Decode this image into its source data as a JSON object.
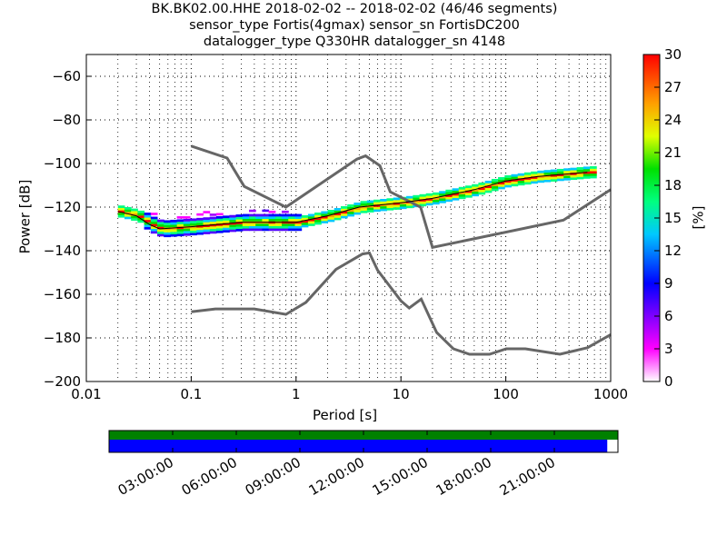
{
  "title_lines": [
    "BK.BK02.00.HHE   2018-02-02 -- 2018-02-02  (46/46 segments)",
    "sensor_type Fortis(4gmax) sensor_sn FortisDC200",
    "datalogger_type Q330HR datalogger_sn 4148"
  ],
  "chart_data": {
    "type": "heatmap",
    "xlabel": "Period [s]",
    "ylabel": "Power [dB]",
    "xscale": "log",
    "xlim": [
      0.01,
      1000
    ],
    "ylim": [
      -200,
      -50
    ],
    "xticks": [
      0.01,
      0.1,
      1,
      10,
      100,
      1000
    ],
    "xtick_labels": [
      "0.01",
      "0.1",
      "1",
      "10",
      "100",
      "1000"
    ],
    "yticks": [
      -200,
      -180,
      -160,
      -140,
      -120,
      -100,
      -80,
      -60
    ],
    "ytick_labels": [
      "−200",
      "−180",
      "−160",
      "−140",
      "−120",
      "−100",
      "−80",
      "−60"
    ],
    "grid": true,
    "mode_curve": [
      [
        0.02,
        -122
      ],
      [
        0.03,
        -124
      ],
      [
        0.04,
        -128
      ],
      [
        0.05,
        -130
      ],
      [
        0.1,
        -129
      ],
      [
        0.3,
        -127
      ],
      [
        1,
        -127
      ],
      [
        2,
        -124
      ],
      [
        4,
        -120
      ],
      [
        10,
        -118
      ],
      [
        20,
        -116
      ],
      [
        50,
        -112
      ],
      [
        100,
        -108
      ],
      [
        200,
        -106
      ],
      [
        600,
        -104
      ]
    ],
    "high_noise_model": [
      [
        0.1,
        -92
      ],
      [
        0.22,
        -97.5
      ],
      [
        0.32,
        -110.5
      ],
      [
        0.8,
        -120
      ],
      [
        3.8,
        -98
      ],
      [
        4.6,
        -96.5
      ],
      [
        6.3,
        -101
      ],
      [
        7.9,
        -113
      ],
      [
        15.4,
        -120
      ],
      [
        20,
        -138.5
      ],
      [
        354,
        -126
      ],
      [
        1000,
        -112
      ]
    ],
    "low_noise_model": [
      [
        0.1,
        -168
      ],
      [
        0.17,
        -166.7
      ],
      [
        0.4,
        -166.7
      ],
      [
        0.8,
        -169.2
      ],
      [
        1.24,
        -163.7
      ],
      [
        2.4,
        -148.6
      ],
      [
        4.3,
        -141.5
      ],
      [
        5,
        -141
      ],
      [
        6,
        -149
      ],
      [
        10,
        -163
      ],
      [
        12,
        -166.3
      ],
      [
        15.6,
        -162.2
      ],
      [
        21.9,
        -177.5
      ],
      [
        31.6,
        -185
      ],
      [
        45,
        -187.5
      ],
      [
        70,
        -187.5
      ],
      [
        101,
        -185
      ],
      [
        154,
        -185
      ],
      [
        328,
        -187.5
      ],
      [
        600,
        -184.5
      ],
      [
        1000,
        -178.5
      ]
    ],
    "colorbar": {
      "label": "[%]",
      "range": [
        0,
        30
      ],
      "ticks": [
        "0",
        "3",
        "6",
        "9",
        "12",
        "15",
        "18",
        "21",
        "24",
        "27",
        "30"
      ]
    },
    "timeline": {
      "tick_labels": [
        "03:00:00",
        "06:00:00",
        "09:00:00",
        "12:00:00",
        "15:00:00",
        "18:00:00",
        "21:00:00"
      ],
      "coverage_fraction": 0.979,
      "colors": {
        "data": "#008000",
        "used": "#0000ff"
      }
    }
  },
  "colors": {
    "noise_model": "#666666",
    "mode": "#000000"
  }
}
